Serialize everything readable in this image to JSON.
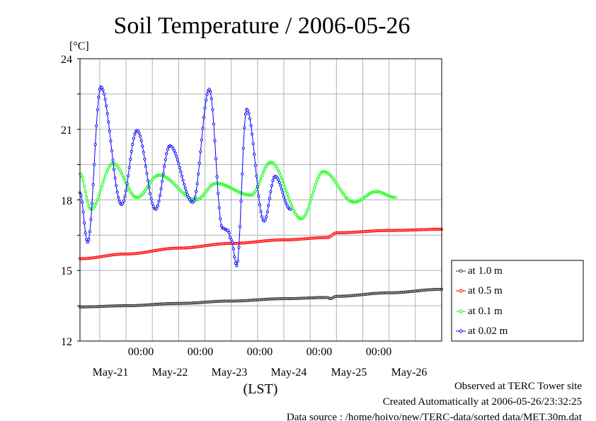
{
  "chart_data": {
    "type": "line",
    "title": "Soil Temperature / 2006-05-26",
    "ylabel": "[°C]",
    "xlabel": "(LST)",
    "ylim": [
      12,
      24
    ],
    "yticks": [
      "24",
      "21",
      "18",
      "15",
      "12"
    ],
    "x_time_ticks": [
      "00:00",
      "00:00",
      "00:00",
      "00:00",
      "00:00"
    ],
    "x_date_labels": [
      "May-21",
      "May-22",
      "May-23",
      "May-24",
      "May-25",
      "May-26"
    ],
    "xlim": [
      "2006-05-20T03:00",
      "2006-05-27T00:00"
    ],
    "grid": true,
    "legend_position": "right",
    "series": [
      {
        "name": "at 1.0 m",
        "color": "#333333",
        "marker": "circle",
        "points": [
          [
            "2006-05-20T03:00",
            13.45
          ],
          [
            "2006-05-21T00:00",
            13.5
          ],
          [
            "2006-05-22T00:00",
            13.6
          ],
          [
            "2006-05-23T00:00",
            13.7
          ],
          [
            "2006-05-24T00:00",
            13.8
          ],
          [
            "2006-05-24T20:00",
            13.85
          ],
          [
            "2006-05-24T21:00",
            13.8
          ],
          [
            "2006-05-25T00:00",
            13.9
          ],
          [
            "2006-05-26T00:00",
            14.05
          ],
          [
            "2006-05-27T00:00",
            14.2
          ]
        ]
      },
      {
        "name": "at 0.5 m",
        "color": "#ff0000",
        "marker": "circle",
        "points": [
          [
            "2006-05-20T03:00",
            15.5
          ],
          [
            "2006-05-21T00:00",
            15.7
          ],
          [
            "2006-05-22T00:00",
            15.95
          ],
          [
            "2006-05-23T00:00",
            16.15
          ],
          [
            "2006-05-24T00:00",
            16.3
          ],
          [
            "2006-05-24T20:00",
            16.4
          ],
          [
            "2006-05-25T00:00",
            16.6
          ],
          [
            "2006-05-26T00:00",
            16.7
          ],
          [
            "2006-05-27T00:00",
            16.75
          ]
        ]
      },
      {
        "name": "at 0.1 m",
        "color": "#00ff00",
        "marker": "circle",
        "points": [
          [
            "2006-05-20T03:00",
            19.1
          ],
          [
            "2006-05-20T08:00",
            17.6
          ],
          [
            "2006-05-20T18:00",
            19.55
          ],
          [
            "2006-05-21T05:00",
            18.1
          ],
          [
            "2006-05-21T15:00",
            19.05
          ],
          [
            "2006-05-22T08:00",
            18.0
          ],
          [
            "2006-05-22T17:00",
            18.7
          ],
          [
            "2006-05-23T09:00",
            18.2
          ],
          [
            "2006-05-23T18:00",
            19.6
          ],
          [
            "2006-05-24T08:00",
            17.2
          ],
          [
            "2006-05-24T18:00",
            19.2
          ],
          [
            "2006-05-25T08:00",
            17.9
          ],
          [
            "2006-05-25T18:00",
            18.35
          ],
          [
            "2006-05-26T03:00",
            18.1
          ]
        ]
      },
      {
        "name": "at 0.02 m",
        "color": "#0000ff",
        "marker": "circle",
        "points": [
          [
            "2006-05-20T03:00",
            18.3
          ],
          [
            "2006-05-20T06:30",
            16.2
          ],
          [
            "2006-05-20T12:30",
            22.8
          ],
          [
            "2006-05-20T22:00",
            17.8
          ],
          [
            "2006-05-21T05:00",
            20.95
          ],
          [
            "2006-05-21T13:30",
            17.6
          ],
          [
            "2006-05-21T20:00",
            20.3
          ],
          [
            "2006-05-22T06:30",
            17.9
          ],
          [
            "2006-05-22T14:00",
            22.7
          ],
          [
            "2006-05-22T20:00",
            16.8
          ],
          [
            "2006-05-22T22:30",
            16.7
          ],
          [
            "2006-05-23T00:00",
            16.3
          ],
          [
            "2006-05-23T02:30",
            15.2
          ],
          [
            "2006-05-23T07:00",
            21.85
          ],
          [
            "2006-05-23T15:00",
            17.1
          ],
          [
            "2006-05-23T20:00",
            19.0
          ],
          [
            "2006-05-24T03:00",
            17.6
          ]
        ]
      }
    ]
  },
  "footer": {
    "site": "Observed at TERC Tower site",
    "created": "Created Automatically at 2006-05-26/23:32:25",
    "source": "Data source : /home/hoivo/new/TERC-data/sorted  data/MET.30m.dat"
  }
}
